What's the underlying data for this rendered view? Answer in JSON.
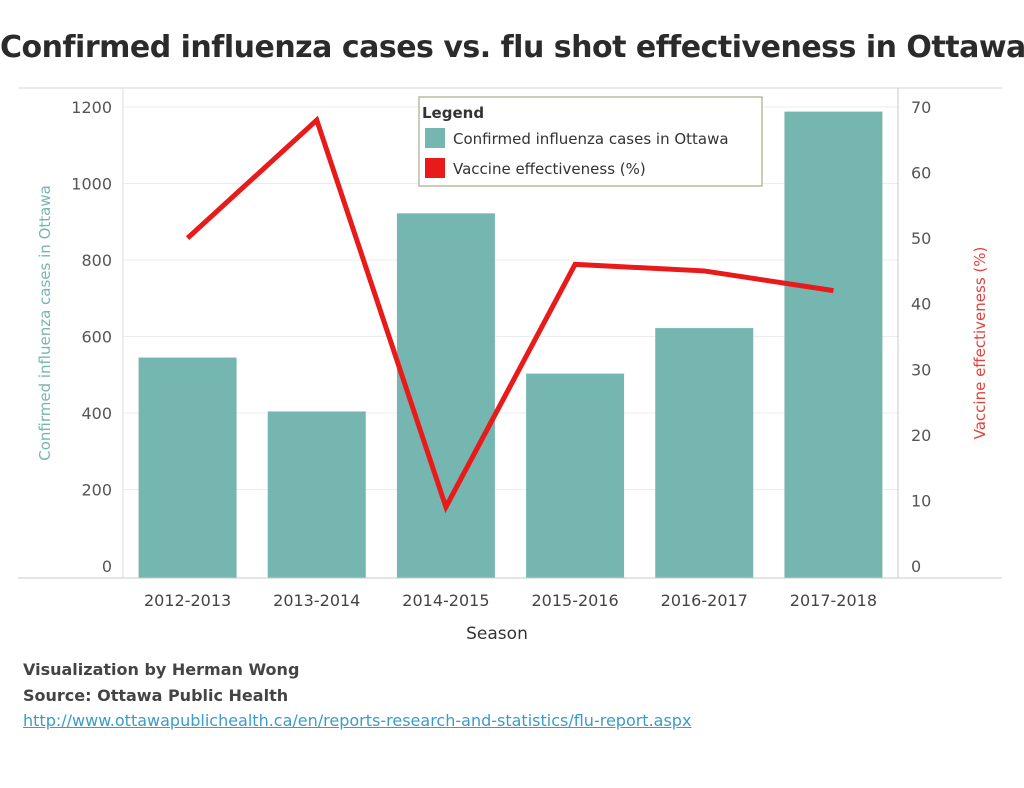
{
  "title": "Confirmed influenza cases vs. flu shot effectiveness in Ottawa",
  "footer": {
    "credit": "Visualization by Herman Wong",
    "source": "Source: Ottawa Public Health",
    "link": "http://www.ottawapublichealth.ca/en/reports-research-and-statistics/flu-report.aspx"
  },
  "colors": {
    "bars": "#76b6b0",
    "line": "#e81a1a",
    "left_axis_label": "#76b6b0",
    "right_axis_label": "#e0433b"
  },
  "chart_data": {
    "type": "bar",
    "categories": [
      "2012-2013",
      "2013-2014",
      "2014-2015",
      "2015-2016",
      "2016-2017",
      "2017-2018"
    ],
    "xlabel": "Season",
    "ylabel": "Confirmed influenza cases in Ottawa",
    "y2label": "Vaccine effectiveness (%)",
    "ylim": [
      0,
      1200
    ],
    "y2lim": [
      0,
      70
    ],
    "yticks": [
      0,
      200,
      400,
      600,
      800,
      1000,
      1200
    ],
    "y2ticks": [
      0,
      10,
      20,
      30,
      40,
      50,
      60,
      70
    ],
    "series": [
      {
        "name": "Confirmed influenza cases in Ottawa",
        "type": "bar",
        "axis": "left",
        "values": [
          545,
          404,
          922,
          503,
          622,
          1188
        ]
      },
      {
        "name": "Vaccine effectiveness (%)",
        "type": "line",
        "axis": "right",
        "values": [
          50,
          68,
          9,
          46,
          45,
          42
        ]
      }
    ],
    "legend": {
      "title": "Legend",
      "placement": "top-center"
    },
    "grid": true
  }
}
